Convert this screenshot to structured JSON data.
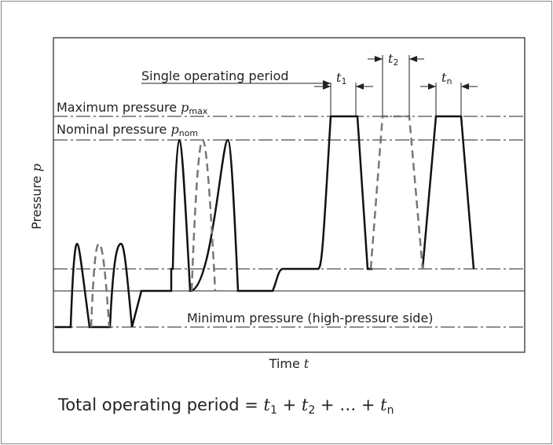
{
  "axes": {
    "y_label": "Pressure",
    "y_symbol": "p",
    "x_label": "Time",
    "x_symbol": "t"
  },
  "levels": {
    "maximum": {
      "label": "Maximum pressure",
      "symbol": "p",
      "sub": "max"
    },
    "nominal": {
      "label": "Nominal pressure",
      "symbol": "p",
      "sub": "nom"
    },
    "minimum": {
      "label": "Minimum pressure (high-pressure side)"
    }
  },
  "single_period": {
    "label": "Single operating period"
  },
  "periods": [
    {
      "symbol": "t",
      "sub": "1"
    },
    {
      "symbol": "t",
      "sub": "2"
    },
    {
      "symbol": "t",
      "sub": "n"
    }
  ],
  "formula": {
    "lead": "Total operating period = ",
    "plus": " + ",
    "ellipsis": "…"
  }
}
